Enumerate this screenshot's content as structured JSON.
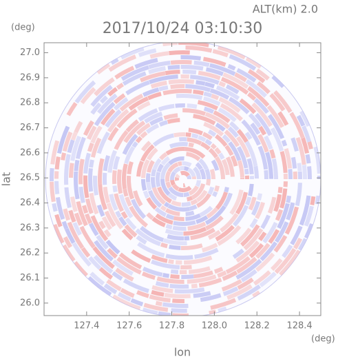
{
  "chart_data": {
    "type": "ppi",
    "title": "2017/10/24 03:10:30",
    "subtitle": "ALT(km) 2.0",
    "x_label": "lon",
    "y_label": "lat",
    "x_unit": "(deg)",
    "y_unit": "(deg)",
    "xlim": [
      127.2,
      128.5
    ],
    "ylim": [
      25.95,
      27.04
    ],
    "xticks": [
      127.4,
      127.6,
      127.8,
      {
        "value": 128,
        "label": "128.0"
      },
      128.2,
      128.4
    ],
    "yticks": [
      {
        "value": 26,
        "label": "26.0"
      },
      26.1,
      26.2,
      26.3,
      26.4,
      26.5,
      26.6,
      26.7,
      26.8,
      26.9,
      {
        "value": 27,
        "label": "27.0"
      }
    ],
    "colors": [
      "#f5b4b4",
      "#c4c6f4"
    ]
  }
}
